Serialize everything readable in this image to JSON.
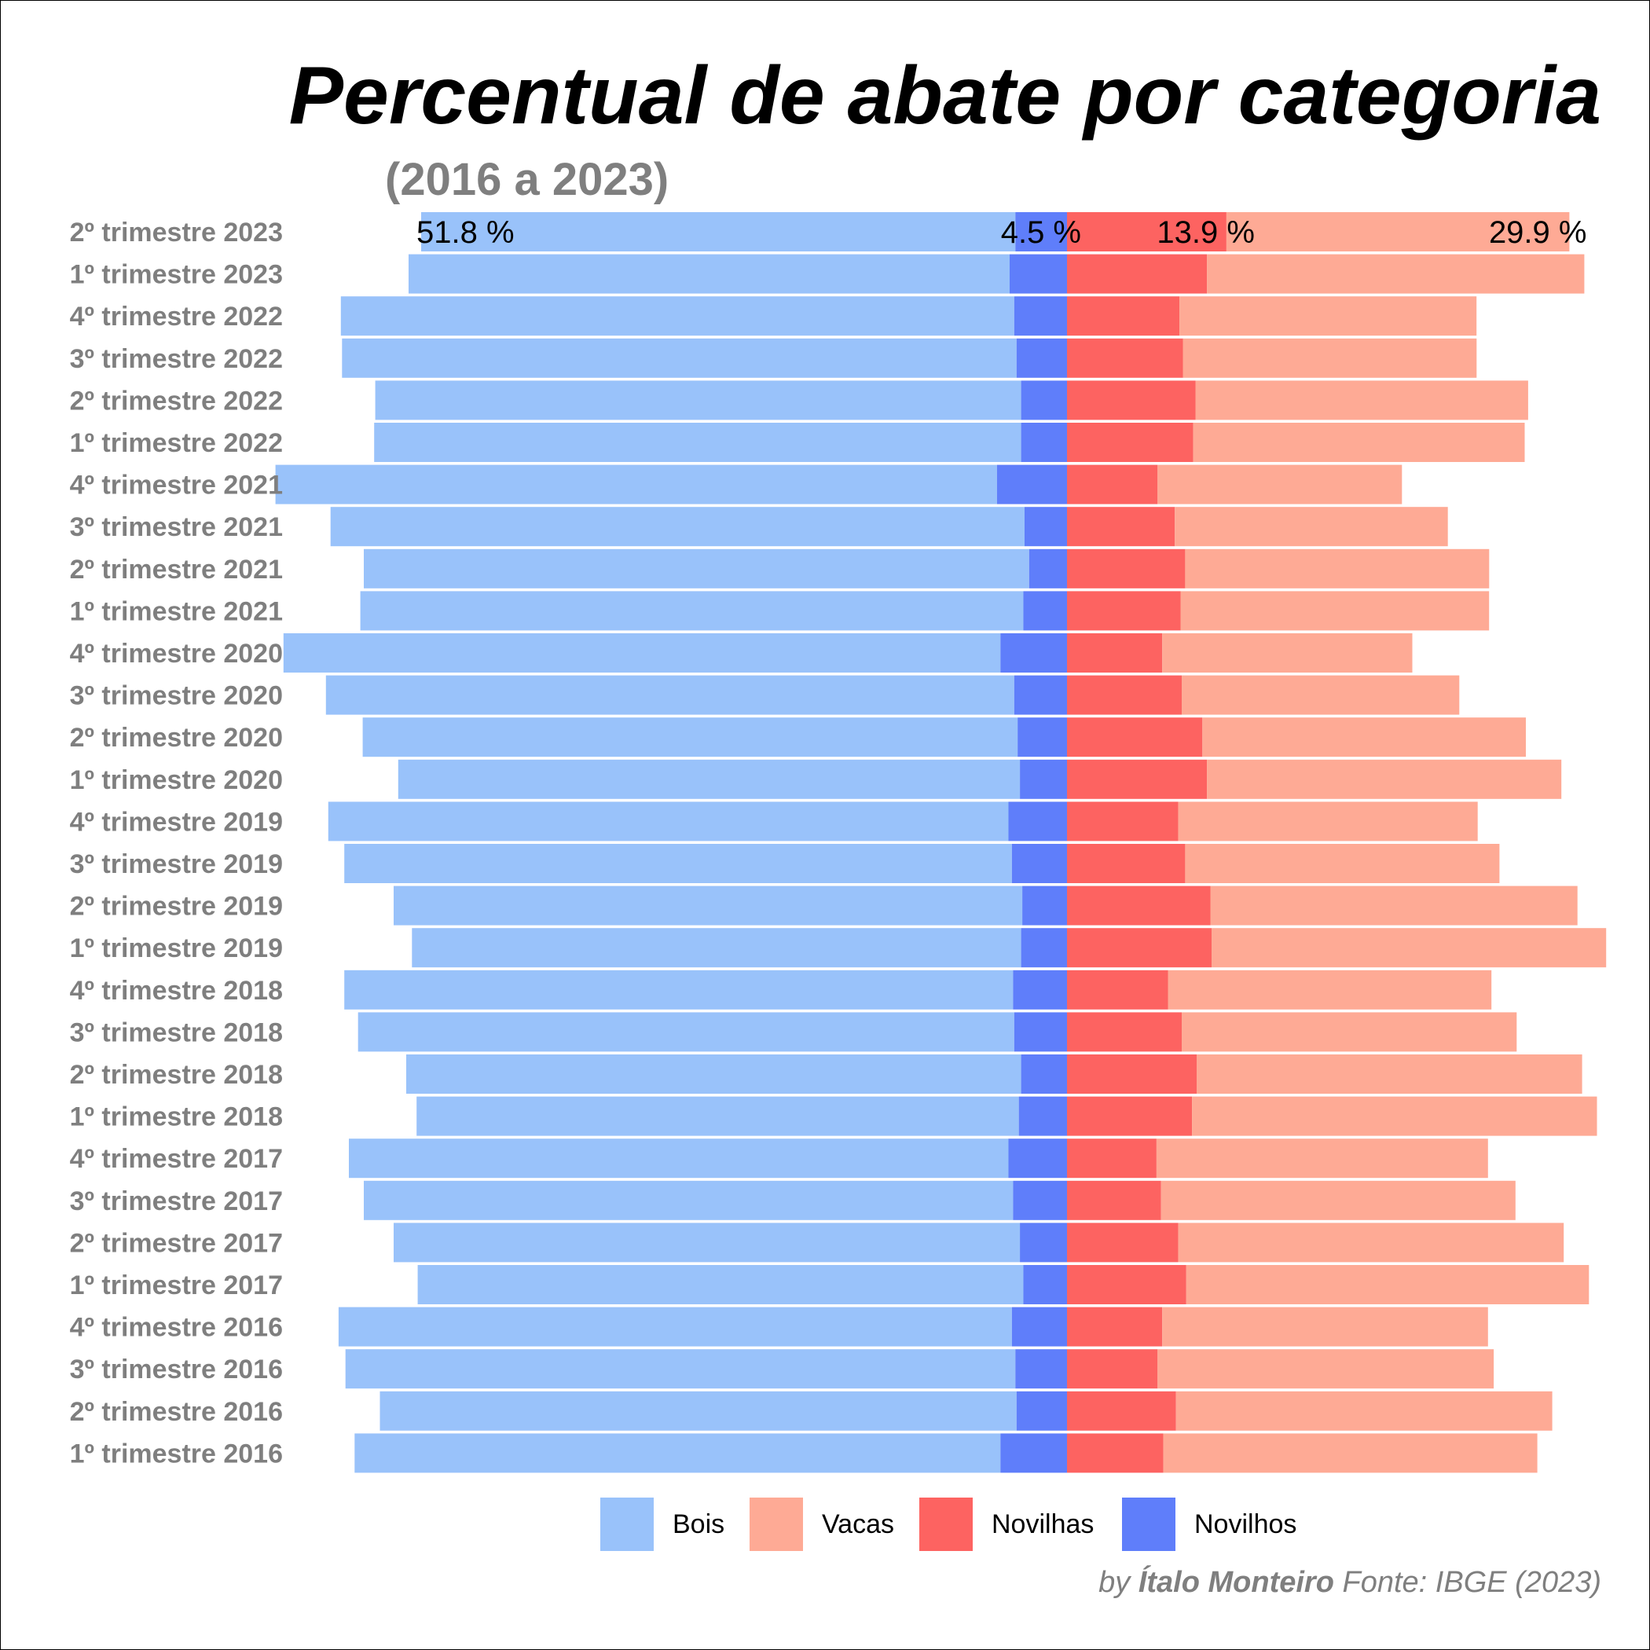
{
  "chart_data": {
    "type": "bar",
    "orientation": "horizontal-diverging",
    "title": "Percentual de abate por categoria",
    "subtitle": "(2016 a 2023)",
    "categories": [
      "2º trimestre 2023",
      "1º trimestre 2023",
      "4º trimestre 2022",
      "3º trimestre 2022",
      "2º trimestre 2022",
      "1º trimestre 2022",
      "4º trimestre 2021",
      "3º trimestre 2021",
      "2º trimestre 2021",
      "1º trimestre 2021",
      "4º trimestre 2020",
      "3º trimestre 2020",
      "2º trimestre 2020",
      "1º trimestre 2020",
      "4º trimestre 2019",
      "3º trimestre 2019",
      "2º trimestre 2019",
      "1º trimestre 2019",
      "4º trimestre 2018",
      "3º trimestre 2018",
      "2º trimestre 2018",
      "1º trimestre 2018",
      "4º trimestre 2017",
      "3º trimestre 2017",
      "2º trimestre 2017",
      "1º trimestre 2017",
      "4º trimestre 2016",
      "3º trimestre 2016",
      "2º trimestre 2016",
      "1º trimestre 2016"
    ],
    "series": [
      {
        "name": "Bois",
        "side": "left",
        "color": "#99C2FA",
        "values": [
          51.8,
          52.4,
          58.7,
          58.8,
          56.3,
          56.4,
          62.9,
          60.5,
          58.0,
          57.8,
          62.5,
          60.0,
          57.1,
          54.2,
          59.3,
          58.2,
          54.8,
          53.1,
          58.3,
          57.2,
          53.6,
          52.5,
          57.5,
          56.6,
          54.6,
          52.8,
          58.7,
          58.4,
          55.5,
          56.3
        ]
      },
      {
        "name": "Novilhos",
        "side": "left",
        "color": "#5F7EFA",
        "values": [
          4.5,
          5.0,
          4.6,
          4.4,
          4.0,
          4.0,
          6.1,
          3.7,
          3.3,
          3.8,
          5.8,
          4.6,
          4.3,
          4.1,
          5.1,
          4.8,
          3.9,
          4.0,
          4.7,
          4.6,
          4.0,
          4.2,
          5.1,
          4.7,
          4.1,
          3.8,
          4.8,
          4.5,
          4.4,
          5.8
        ]
      },
      {
        "name": "Novilhas",
        "side": "right",
        "color": "#FD6361",
        "values": [
          13.9,
          12.2,
          9.8,
          10.1,
          11.2,
          11.0,
          7.9,
          9.4,
          10.3,
          9.9,
          8.3,
          10.0,
          11.8,
          12.2,
          9.7,
          10.3,
          12.5,
          12.6,
          8.8,
          10.0,
          11.3,
          10.9,
          7.8,
          8.2,
          9.7,
          10.4,
          8.3,
          7.9,
          9.5,
          8.4
        ]
      },
      {
        "name": "Vacas",
        "side": "right",
        "color": "#FEAA95",
        "values": [
          29.9,
          32.9,
          25.9,
          25.6,
          29.0,
          28.9,
          21.3,
          23.8,
          26.5,
          26.9,
          21.8,
          24.2,
          28.2,
          30.9,
          26.1,
          27.4,
          32.0,
          34.4,
          28.2,
          29.2,
          33.6,
          35.3,
          28.9,
          30.9,
          33.6,
          35.1,
          28.4,
          29.3,
          32.8,
          32.6
        ]
      }
    ],
    "top_row_labels": [
      "51.8 %",
      "4.5 %",
      "13.9 %",
      "29.9 %"
    ],
    "legend": {
      "position": "bottom",
      "order": [
        "Bois",
        "Vacas",
        "Novilhas",
        "Novilhos"
      ]
    },
    "x_axis": {
      "visible": false
    },
    "grid": false
  },
  "caption": {
    "by": "by",
    "author": "Ítalo Monteiro",
    "source": "Fonte: IBGE (2023)"
  }
}
